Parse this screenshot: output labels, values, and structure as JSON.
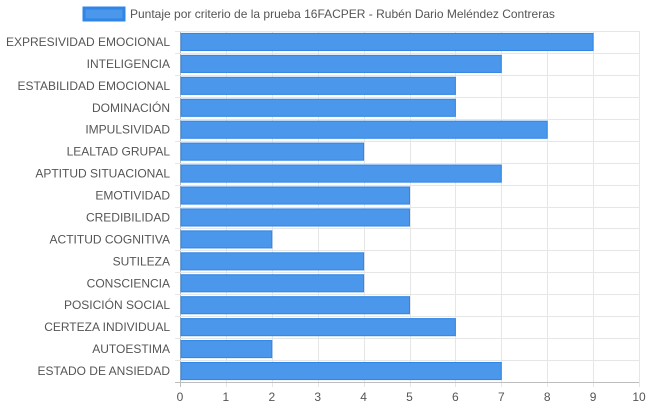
{
  "chart_data": {
    "type": "bar",
    "orientation": "horizontal",
    "categories": [
      "EXPRESIVIDAD EMOCIONAL",
      "INTELIGENCIA",
      "ESTABILIDAD EMOCIONAL",
      "DOMINACIÓN",
      "IMPULSIVIDAD",
      "LEALTAD GRUPAL",
      "APTITUD SITUACIONAL",
      "EMOTIVIDAD",
      "CREDIBILIDAD",
      "ACTITUD COGNITIVA",
      "SUTILEZA",
      "CONSCIENCIA",
      "POSICIÓN SOCIAL",
      "CERTEZA INDIVIDUAL",
      "AUTOESTIMA",
      "ESTADO DE ANSIEDAD"
    ],
    "series": [
      {
        "name": "Puntaje por criterio de la prueba 16FACPER - Rubén Dario Meléndez Contreras",
        "values": [
          9,
          7,
          6,
          6,
          8,
          4,
          7,
          5,
          5,
          2,
          4,
          4,
          5,
          6,
          2,
          7
        ]
      }
    ],
    "xlim": [
      0,
      10
    ],
    "xticks": [
      "0",
      "1",
      "2",
      "3",
      "4",
      "5",
      "6",
      "7",
      "8",
      "9",
      "10"
    ],
    "grid": true,
    "legend_position": "top",
    "bar_color": "#4a97eb",
    "bar_border_color": "#2f86e6"
  }
}
